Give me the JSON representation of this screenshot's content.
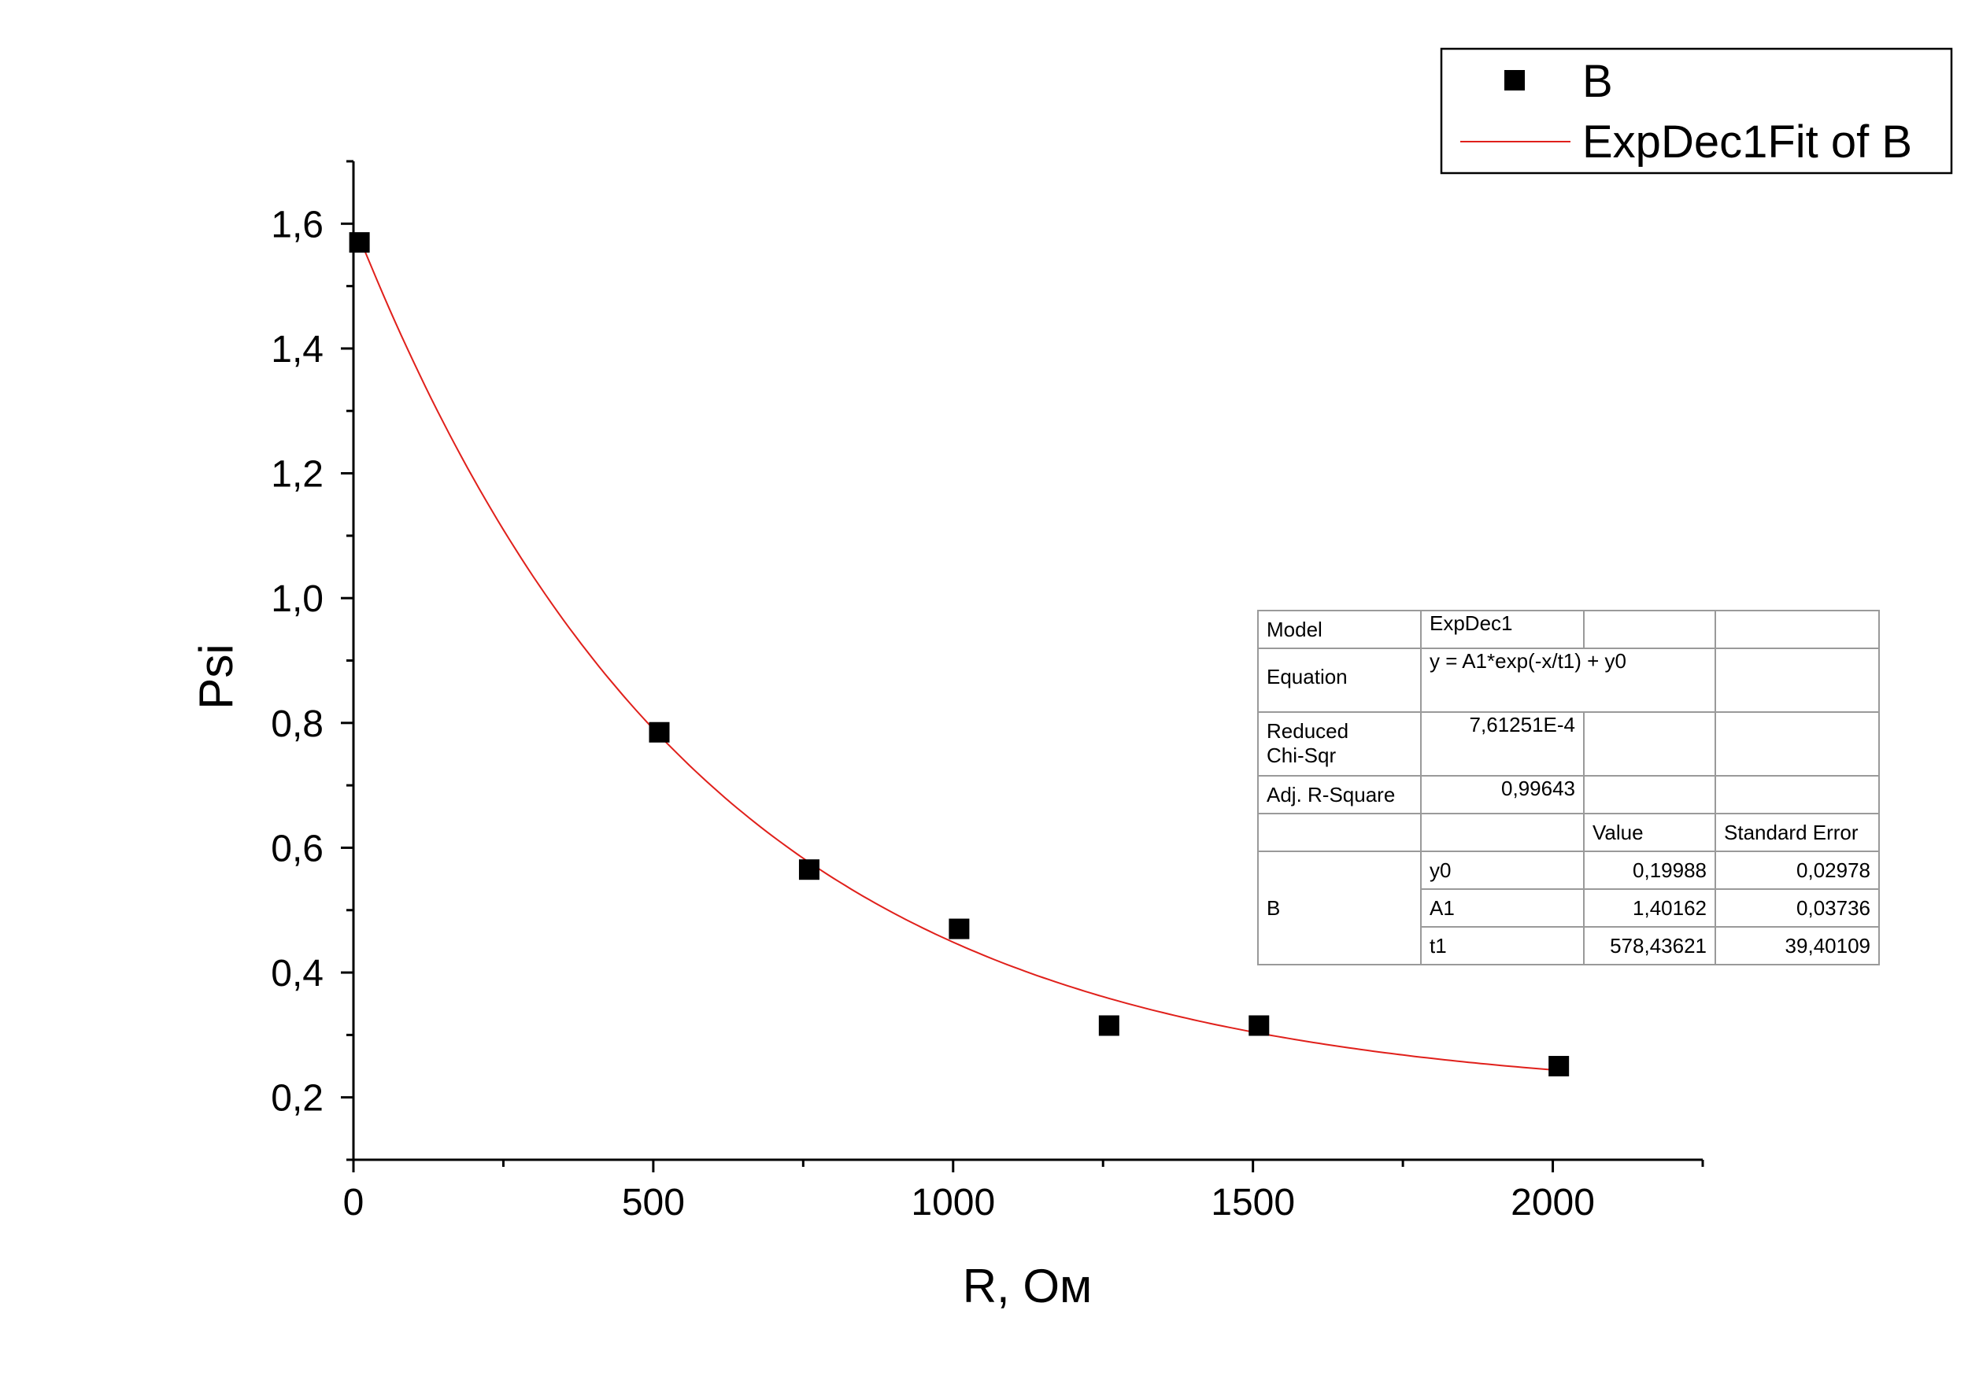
{
  "chart_data": {
    "type": "scatter",
    "xlabel": "R, Ом",
    "ylabel": "Psi",
    "xlim": [
      0,
      2250
    ],
    "ylim": [
      0.1,
      1.7
    ],
    "x_ticks": [
      0,
      500,
      1000,
      1500,
      2000
    ],
    "x_tick_labels": [
      "0",
      "500",
      "1000",
      "1500",
      "2000"
    ],
    "x_minor_step": 250,
    "y_ticks": [
      0.2,
      0.4,
      0.6,
      0.8,
      1.0,
      1.2,
      1.4,
      1.6
    ],
    "y_tick_labels": [
      "0,2",
      "0,4",
      "0,6",
      "0,8",
      "1,0",
      "1,2",
      "1,4",
      "1,6"
    ],
    "y_minor_step": 0.1,
    "grid": false,
    "legend_position": "top-right",
    "series": [
      {
        "name": "B",
        "kind": "scatter",
        "marker": "square",
        "color": "#000000",
        "x": [
          10,
          510,
          760,
          1010,
          1260,
          1510,
          2010
        ],
        "y": [
          1.57,
          0.785,
          0.565,
          0.47,
          0.315,
          0.315,
          0.25
        ]
      },
      {
        "name": "ExpDec1Fit of B",
        "kind": "line",
        "color": "#e0201b",
        "x_range": [
          10,
          2010
        ],
        "model": {
          "y0": 0.19988,
          "A1": 1.40162,
          "t1": 578.43621
        }
      }
    ]
  },
  "fit_table": {
    "model_label": "Model",
    "model_value": "ExpDec1",
    "equation_label": "Equation",
    "equation_value": "y = A1*exp(-x/t1) + y0",
    "chi_label_1": "Reduced",
    "chi_label_2": "Chi-Sqr",
    "chi_value": "7,61251E-4",
    "r2_label": "Adj. R-Square",
    "r2_value": "0,99643",
    "value_header": "Value",
    "error_header": "Standard Error",
    "group_label": "B",
    "params": [
      {
        "name": "y0",
        "value": "0,19988",
        "error": "0,02978"
      },
      {
        "name": "A1",
        "value": "1,40162",
        "error": "0,03736"
      },
      {
        "name": "t1",
        "value": "578,43621",
        "error": "39,40109"
      }
    ]
  }
}
